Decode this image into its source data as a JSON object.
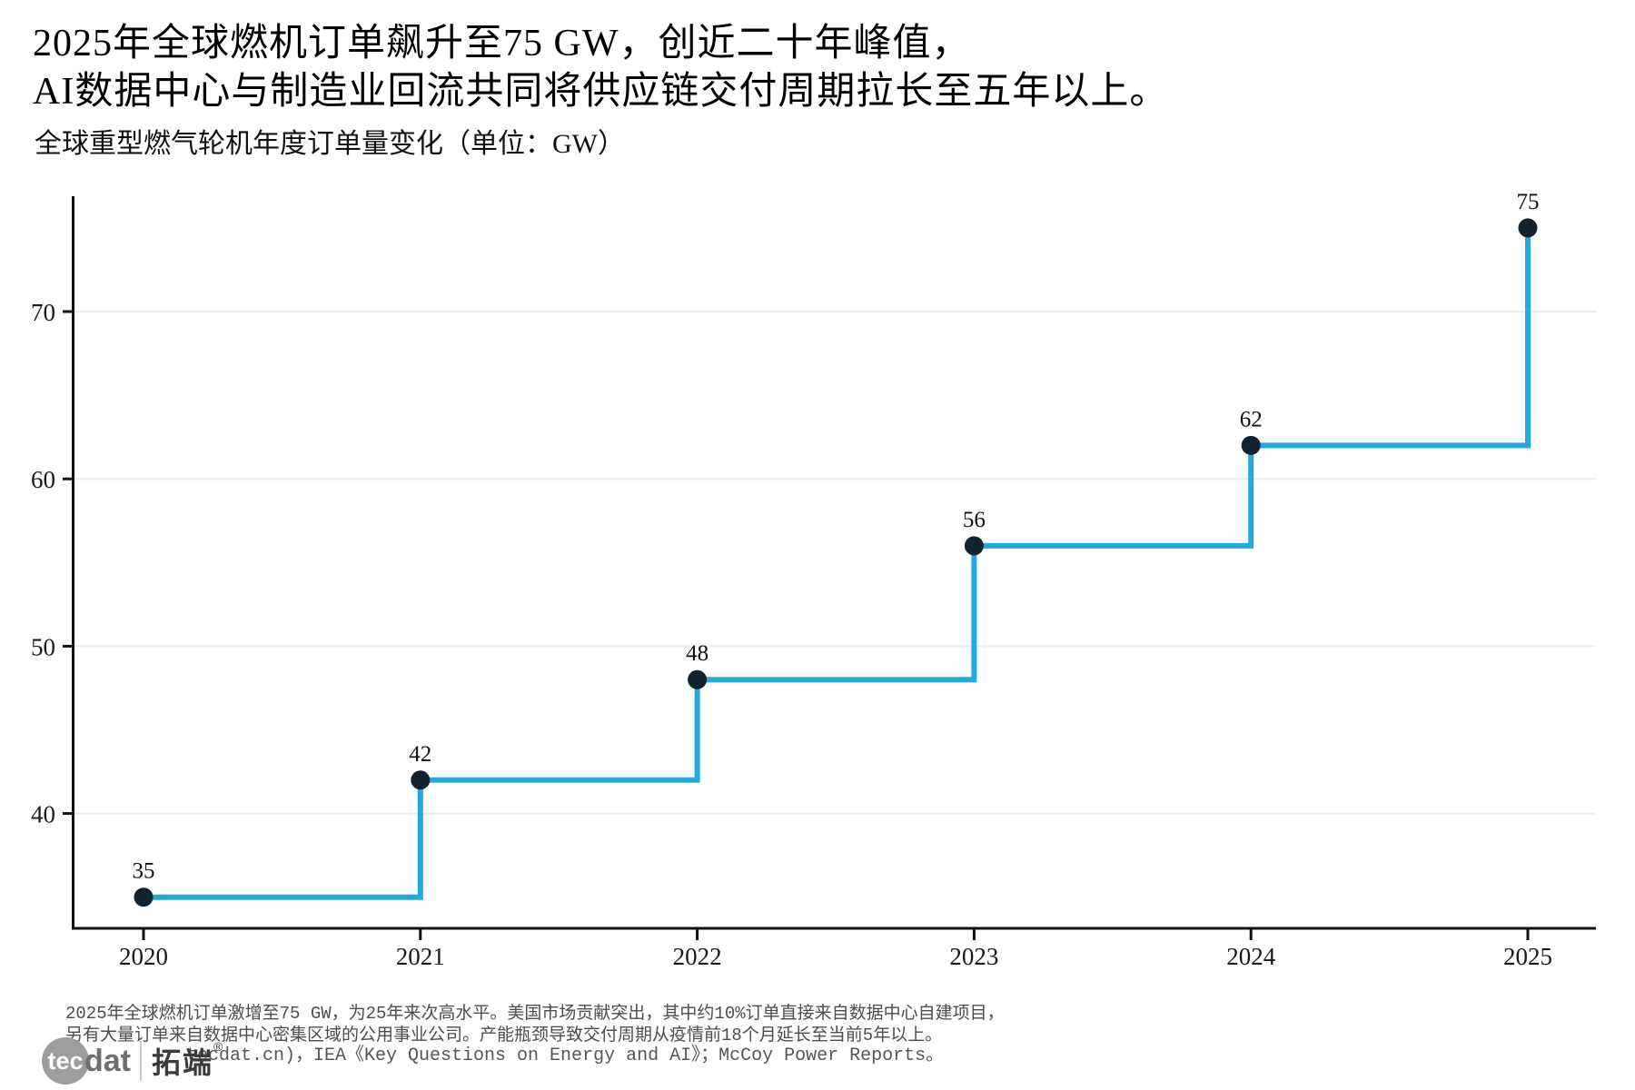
{
  "header": {
    "title_line1": "2025年全球燃机订单飙升至75 GW，创近二十年峰值，",
    "title_line2": "AI数据中心与制造业回流共同将供应链交付周期拉长至五年以上。",
    "subtitle": "全球重型燃气轮机年度订单量变化（单位：GW）"
  },
  "chart_data": {
    "type": "line",
    "style": "step-post",
    "title": "全球重型燃气轮机年度订单量变化（单位：GW）",
    "x": [
      2020,
      2021,
      2022,
      2023,
      2024,
      2025
    ],
    "values": [
      35,
      42,
      48,
      56,
      62,
      75
    ],
    "point_labels": [
      "35",
      "42",
      "48",
      "56",
      "62",
      "75"
    ],
    "xticks": [
      "2020",
      "2021",
      "2022",
      "2023",
      "2024",
      "2025"
    ],
    "yticks": [
      40,
      50,
      60,
      70
    ],
    "ylim": [
      33,
      78
    ],
    "xlabel": "",
    "ylabel": "",
    "grid": "horizontal",
    "legend": "none",
    "line_color": "#23A8E0",
    "marker_color": "#12222F",
    "grid_color": "#EBEBEB",
    "axis_color": "#111111",
    "tick_label_color": "#1a1a1a"
  },
  "footer": {
    "note_line1": "2025年全球燃机订单激增至75 GW，为25年来次高水平。美国市场贡献突出，其中约10%订单直接来自数据中心自建项目，",
    "note_line2": "另有大量订单来自数据中心密集区域的公用事业公司。产能瓶颈导致交付周期从疫情前18个月延长至当前5年以上。",
    "source_visible": "tecdat.cn)，IEA《Key Questions on Energy and AI》；McCoy Power Reports。",
    "logo": {
      "circle_text": "tec",
      "wordmark_rest": "dat",
      "cn_name": "拓端",
      "reg_mark": "®"
    }
  }
}
